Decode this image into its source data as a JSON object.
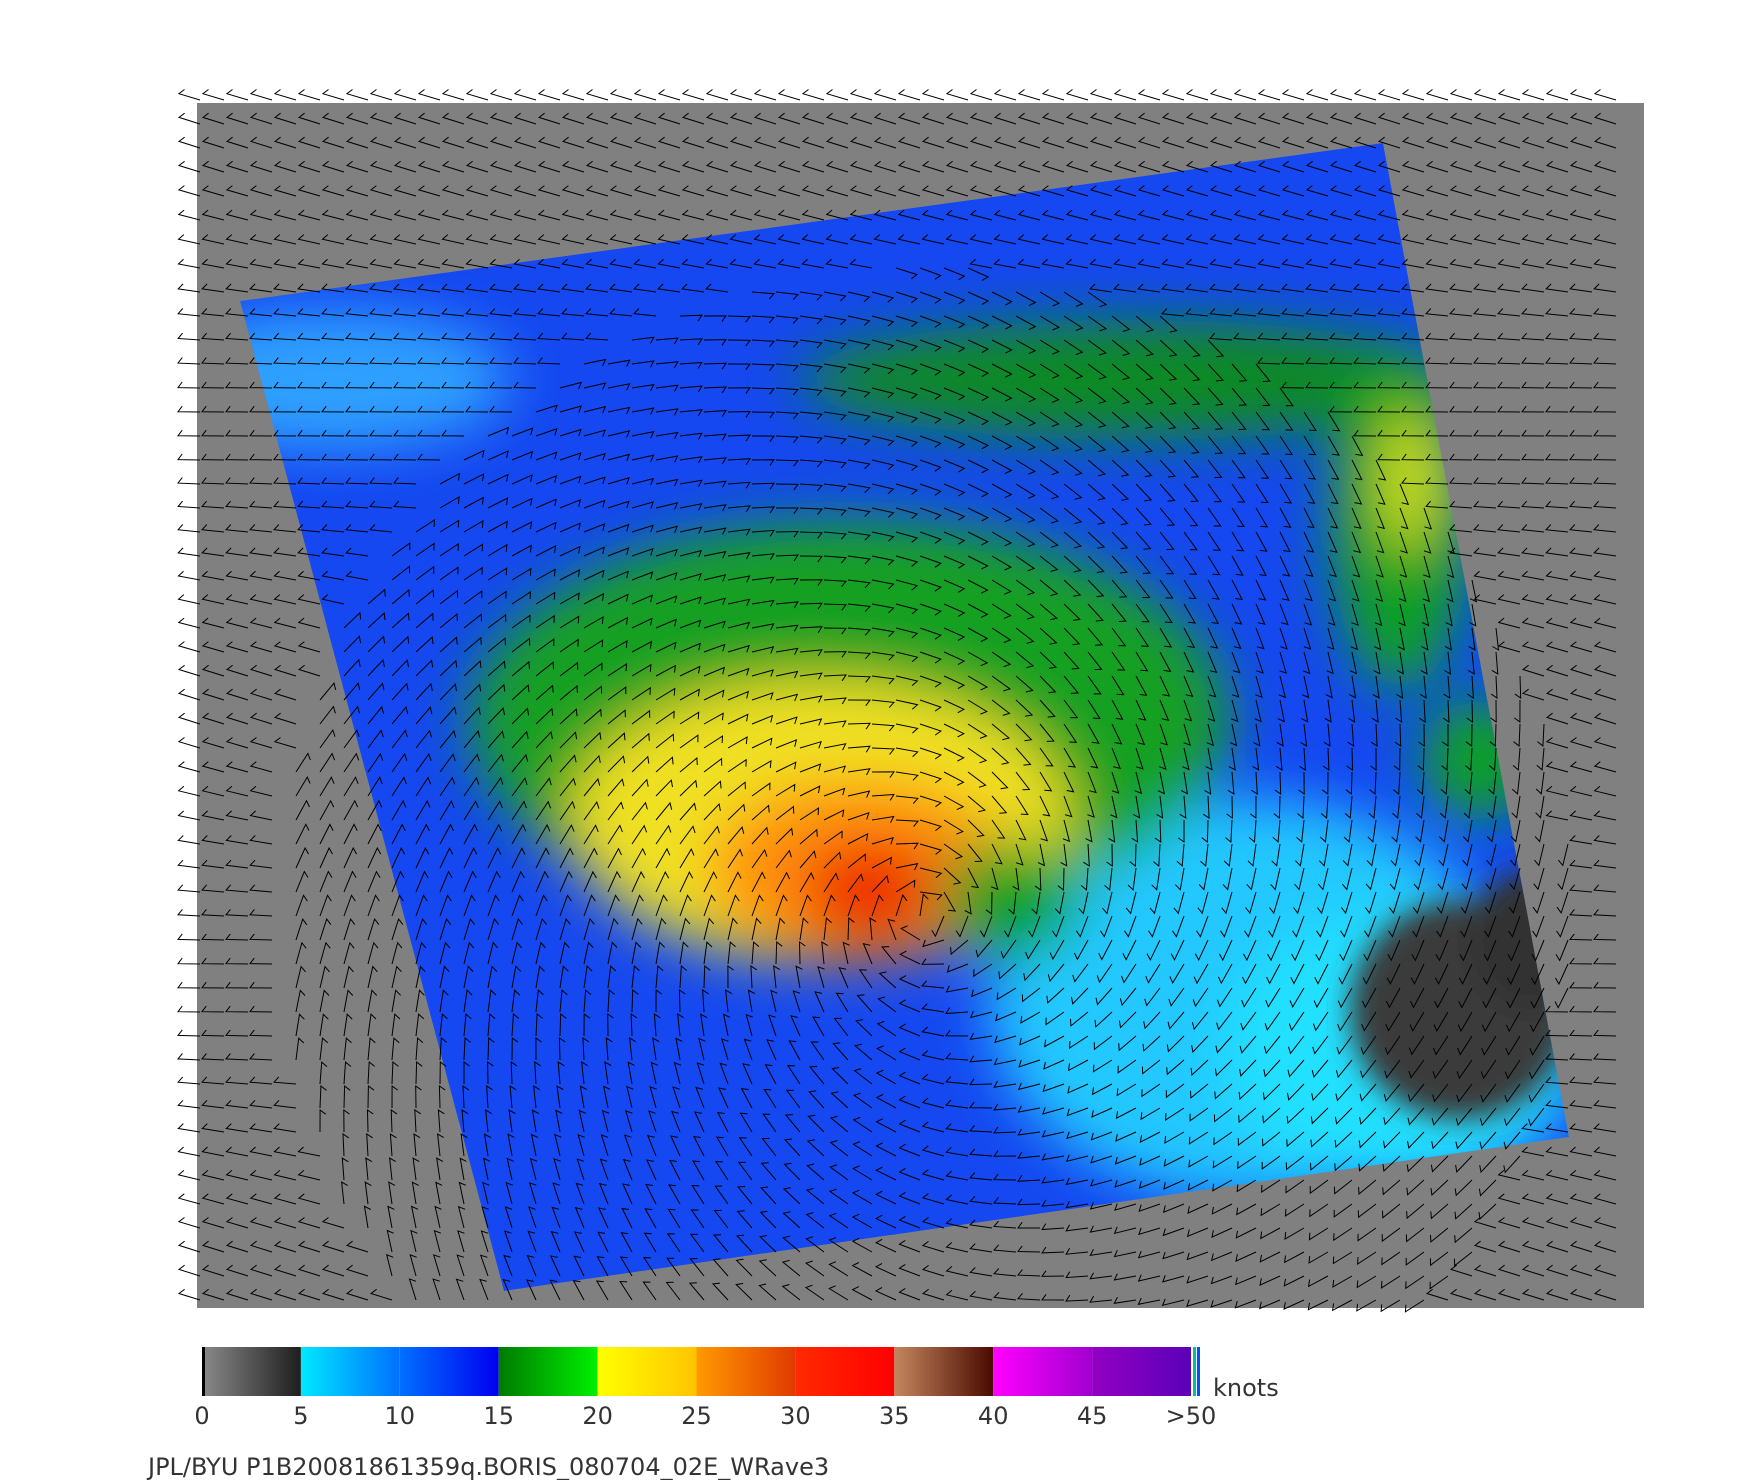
{
  "colorbar": {
    "label": "knots",
    "range": [
      0,
      50
    ],
    "ticks": [
      0,
      5,
      10,
      15,
      20,
      25,
      30,
      35,
      40,
      45,
      {
        "value": 50,
        "label": ">50"
      }
    ],
    "colors": [
      [
        "#8a8a8a",
        "#1e1e1e"
      ],
      [
        "#00e8ff",
        "#0070ff"
      ],
      [
        "#0070ff",
        "#0000f0"
      ],
      [
        "#007a00",
        "#00f000"
      ],
      [
        "#ffff00",
        "#ffc400"
      ],
      [
        "#ff9a00",
        "#e03a00"
      ],
      [
        "#ff2a00",
        "#ff0000"
      ],
      [
        "#c4865e",
        "#4a0a00"
      ],
      [
        "#ff00ff",
        "#a000d0"
      ],
      [
        "#9400c4",
        "#5a00b8"
      ]
    ]
  },
  "footer": "JPL/BYU  P1B20081861359q.BORIS_080704_02E_WRave3"
}
